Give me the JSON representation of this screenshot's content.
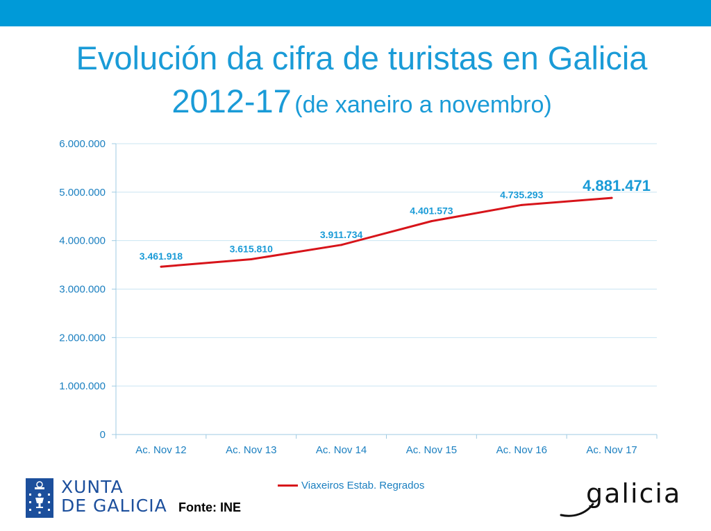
{
  "header": {
    "title_line1": "Evolución da cifra de turistas en Galicia",
    "title_years": "2012-17",
    "title_period": "(de xaneiro a novembro)"
  },
  "chart_data": {
    "type": "line",
    "categories": [
      "Ac. Nov 12",
      "Ac. Nov 13",
      "Ac. Nov 14",
      "Ac. Nov 15",
      "Ac. Nov 16",
      "Ac. Nov 17"
    ],
    "series": [
      {
        "name": "Viaxeiros Estab. Regrados",
        "values": [
          3461918,
          3615810,
          3911734,
          4401573,
          4735293,
          4881471
        ],
        "color": "#d7141a"
      }
    ],
    "data_labels": [
      "3.461.918",
      "3.615.810",
      "3.911.734",
      "4.401.573",
      "4.735.293",
      "4.881.471"
    ],
    "y_ticks": [
      0,
      1000000,
      2000000,
      3000000,
      4000000,
      5000000,
      6000000
    ],
    "y_tick_labels": [
      "0",
      "1.000.000",
      "2.000.000",
      "3.000.000",
      "4.000.000",
      "5.000.000",
      "6.000.000"
    ],
    "ylim": [
      0,
      6000000
    ],
    "grid": true,
    "legend_position": "bottom",
    "xlabel": "",
    "ylabel": ""
  },
  "footer": {
    "source": "Fonte: INE",
    "xunta_line1": "XUNTA",
    "xunta_line2": "DE GALICIA",
    "galicia_logo_text": "galicia"
  },
  "colors": {
    "brand_blue": "#009ad8",
    "title_blue": "#1a9bd7",
    "line_red": "#d7141a",
    "gridline": "#c9e4f2",
    "xunta_blue": "#1c4f9c"
  }
}
